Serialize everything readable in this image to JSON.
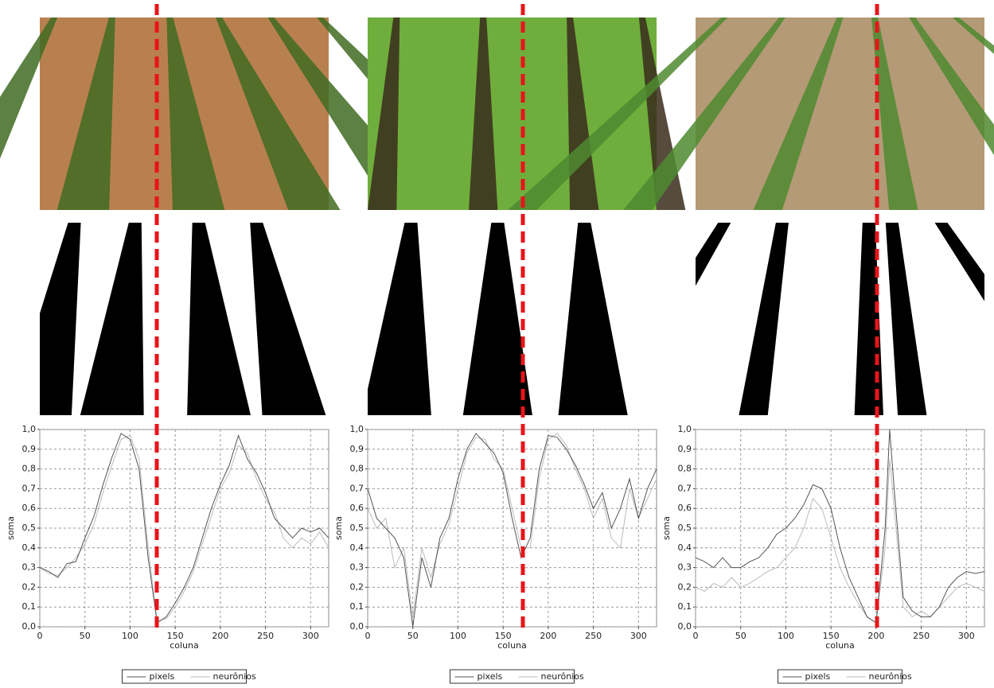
{
  "chart_data": [
    {
      "type": "line",
      "x_label": "coluna",
      "y_label": "soma",
      "x": [
        0,
        10,
        20,
        30,
        40,
        50,
        60,
        70,
        80,
        90,
        100,
        110,
        120,
        130,
        140,
        150,
        160,
        170,
        180,
        190,
        200,
        210,
        220,
        230,
        240,
        250,
        260,
        270,
        280,
        290,
        300,
        310,
        320
      ],
      "series": [
        {
          "name": "pixels",
          "color": "#555555",
          "values": [
            0.3,
            0.28,
            0.25,
            0.32,
            0.33,
            0.45,
            0.56,
            0.72,
            0.86,
            0.98,
            0.95,
            0.8,
            0.35,
            0.02,
            0.05,
            0.12,
            0.2,
            0.3,
            0.45,
            0.6,
            0.72,
            0.82,
            0.97,
            0.85,
            0.78,
            0.68,
            0.55,
            0.5,
            0.45,
            0.5,
            0.48,
            0.5,
            0.45
          ]
        },
        {
          "name": "neurônios",
          "color": "#bbbbbb",
          "values": [
            0.3,
            0.27,
            0.26,
            0.3,
            0.35,
            0.42,
            0.52,
            0.68,
            0.82,
            0.95,
            0.97,
            0.85,
            0.4,
            0.03,
            0.04,
            0.1,
            0.18,
            0.28,
            0.42,
            0.56,
            0.7,
            0.78,
            0.92,
            0.88,
            0.75,
            0.65,
            0.58,
            0.45,
            0.4,
            0.45,
            0.42,
            0.48,
            0.4
          ]
        }
      ],
      "xlim": [
        0,
        320
      ],
      "ylim": [
        0,
        1
      ],
      "xticks": [
        0,
        50,
        100,
        150,
        200,
        250,
        300
      ],
      "yticks": [
        {
          "value": 0,
          "label": "0,0"
        },
        {
          "value": 0.1,
          "label": "0,1"
        },
        {
          "value": 0.2,
          "label": "0,2"
        },
        {
          "value": 0.3,
          "label": "0,3"
        },
        {
          "value": 0.4,
          "label": "0,4"
        },
        {
          "value": 0.5,
          "label": "0,5"
        },
        {
          "value": 0.6,
          "label": "0,6"
        },
        {
          "value": 0.7,
          "label": "0,7"
        },
        {
          "value": 0.8,
          "label": "0,8"
        },
        {
          "value": 0.9,
          "label": "0,9"
        },
        {
          "value": 1,
          "label": "1,0"
        }
      ],
      "grid": true
    },
    {
      "type": "line",
      "x_label": "coluna",
      "y_label": "soma",
      "x": [
        0,
        10,
        20,
        30,
        40,
        50,
        60,
        70,
        80,
        90,
        100,
        110,
        120,
        130,
        140,
        150,
        160,
        170,
        180,
        190,
        200,
        210,
        220,
        230,
        240,
        250,
        260,
        270,
        280,
        290,
        300,
        310,
        320
      ],
      "series": [
        {
          "name": "pixels",
          "color": "#555555",
          "values": [
            0.7,
            0.55,
            0.5,
            0.45,
            0.35,
            0.0,
            0.35,
            0.2,
            0.45,
            0.55,
            0.75,
            0.9,
            0.98,
            0.93,
            0.88,
            0.78,
            0.55,
            0.35,
            0.45,
            0.8,
            0.97,
            0.96,
            0.9,
            0.82,
            0.72,
            0.6,
            0.68,
            0.5,
            0.6,
            0.75,
            0.55,
            0.7,
            0.8
          ]
        },
        {
          "name": "neurônios",
          "color": "#bbbbbb",
          "values": [
            0.6,
            0.5,
            0.55,
            0.3,
            0.4,
            0.05,
            0.4,
            0.25,
            0.42,
            0.52,
            0.7,
            0.88,
            0.96,
            0.95,
            0.85,
            0.8,
            0.6,
            0.4,
            0.4,
            0.75,
            0.95,
            0.98,
            0.92,
            0.8,
            0.7,
            0.55,
            0.65,
            0.45,
            0.4,
            0.7,
            0.55,
            0.65,
            0.75
          ]
        }
      ],
      "xlim": [
        0,
        320
      ],
      "ylim": [
        0,
        1
      ],
      "xticks": [
        0,
        50,
        100,
        150,
        200,
        250,
        300
      ],
      "yticks": [
        {
          "value": 0,
          "label": "0,0"
        },
        {
          "value": 0.1,
          "label": "0,1"
        },
        {
          "value": 0.2,
          "label": "0,2"
        },
        {
          "value": 0.3,
          "label": "0,3"
        },
        {
          "value": 0.4,
          "label": "0,4"
        },
        {
          "value": 0.5,
          "label": "0,5"
        },
        {
          "value": 0.6,
          "label": "0,6"
        },
        {
          "value": 0.7,
          "label": "0,7"
        },
        {
          "value": 0.8,
          "label": "0,8"
        },
        {
          "value": 0.9,
          "label": "0,9"
        },
        {
          "value": 1,
          "label": "1,0"
        }
      ],
      "grid": true
    },
    {
      "type": "line",
      "x_label": "coluna",
      "y_label": "soma",
      "x": [
        0,
        10,
        20,
        30,
        40,
        50,
        60,
        70,
        80,
        90,
        100,
        110,
        120,
        130,
        140,
        150,
        160,
        170,
        180,
        190,
        200,
        210,
        215,
        220,
        230,
        240,
        250,
        260,
        270,
        280,
        290,
        300,
        310,
        320
      ],
      "series": [
        {
          "name": "pixels",
          "color": "#555555",
          "values": [
            0.35,
            0.33,
            0.3,
            0.35,
            0.3,
            0.3,
            0.33,
            0.35,
            0.4,
            0.47,
            0.5,
            0.55,
            0.62,
            0.72,
            0.7,
            0.6,
            0.4,
            0.25,
            0.15,
            0.05,
            0.02,
            0.5,
            1.0,
            0.7,
            0.15,
            0.08,
            0.05,
            0.05,
            0.1,
            0.2,
            0.25,
            0.28,
            0.27,
            0.28
          ]
        },
        {
          "name": "neurônios",
          "color": "#bbbbbb",
          "values": [
            0.2,
            0.18,
            0.22,
            0.2,
            0.25,
            0.2,
            0.22,
            0.25,
            0.28,
            0.3,
            0.35,
            0.4,
            0.5,
            0.65,
            0.6,
            0.45,
            0.3,
            0.2,
            0.12,
            0.05,
            0.02,
            0.4,
            0.85,
            0.6,
            0.1,
            0.05,
            0.08,
            0.05,
            0.1,
            0.15,
            0.2,
            0.22,
            0.2,
            0.18
          ]
        }
      ],
      "xlim": [
        0,
        320
      ],
      "ylim": [
        0,
        1
      ],
      "xticks": [
        0,
        50,
        100,
        150,
        200,
        250,
        300
      ],
      "yticks": [
        {
          "value": 0,
          "label": "0,0"
        },
        {
          "value": 0.1,
          "label": "0,1"
        },
        {
          "value": 0.2,
          "label": "0,2"
        },
        {
          "value": 0.3,
          "label": "0,3"
        },
        {
          "value": 0.4,
          "label": "0,4"
        },
        {
          "value": 0.5,
          "label": "0,5"
        },
        {
          "value": 0.6,
          "label": "0,6"
        },
        {
          "value": 0.7,
          "label": "0,7"
        },
        {
          "value": 0.8,
          "label": "0,8"
        },
        {
          "value": 0.9,
          "label": "0,9"
        },
        {
          "value": 1,
          "label": "1,0"
        }
      ],
      "grid": true
    }
  ]
}
